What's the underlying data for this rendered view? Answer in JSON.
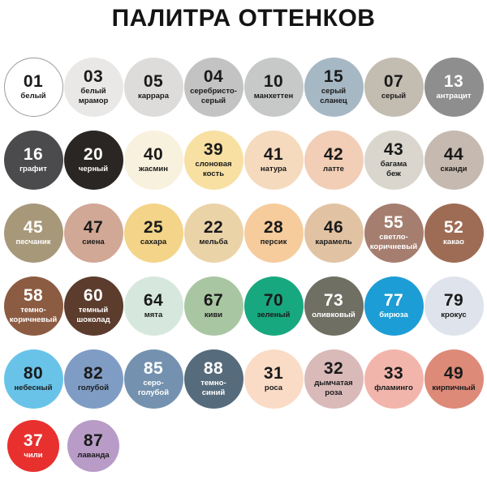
{
  "title": "ПАЛИТРА ОТТЕНКОВ",
  "palette": {
    "rows": [
      [
        {
          "number": "01",
          "name": "белый",
          "color": "#ffffff",
          "text_color": "#1a1a1a",
          "border": "#9a9a9a"
        },
        {
          "number": "03",
          "name": "белый\nмрамор",
          "color": "#e9e8e6",
          "text_color": "#1a1a1a"
        },
        {
          "number": "05",
          "name": "каррара",
          "color": "#dddcda",
          "text_color": "#1a1a1a"
        },
        {
          "number": "04",
          "name": "серебристо-\nсерый",
          "color": "#c3c3c3",
          "text_color": "#1a1a1a"
        },
        {
          "number": "10",
          "name": "манхеттен",
          "color": "#c6c9c8",
          "text_color": "#1a1a1a"
        },
        {
          "number": "15",
          "name": "серый\nсланец",
          "color": "#a7b8c5",
          "text_color": "#1a1a1a"
        },
        {
          "number": "07",
          "name": "серый",
          "color": "#c3bcb0",
          "text_color": "#1a1a1a"
        },
        {
          "number": "13",
          "name": "антрацит",
          "color": "#8e8e8e",
          "text_color": "#ffffff"
        }
      ],
      [
        {
          "number": "16",
          "name": "графит",
          "color": "#4b4b4d",
          "text_color": "#ffffff"
        },
        {
          "number": "20",
          "name": "черный",
          "color": "#292623",
          "text_color": "#ffffff"
        },
        {
          "number": "40",
          "name": "жасмин",
          "color": "#f8f1dd",
          "text_color": "#1a1a1a"
        },
        {
          "number": "39",
          "name": "слоновая\nкость",
          "color": "#f8e0a2",
          "text_color": "#1a1a1a"
        },
        {
          "number": "41",
          "name": "натура",
          "color": "#f6dabd",
          "text_color": "#1a1a1a"
        },
        {
          "number": "42",
          "name": "латте",
          "color": "#f1ceb5",
          "text_color": "#1a1a1a"
        },
        {
          "number": "43",
          "name": "багама\nбеж",
          "color": "#dad6cd",
          "text_color": "#1a1a1a"
        },
        {
          "number": "44",
          "name": "сканди",
          "color": "#c6b9af",
          "text_color": "#1a1a1a"
        }
      ],
      [
        {
          "number": "45",
          "name": "песчаник",
          "color": "#a8987a",
          "text_color": "#ffffff"
        },
        {
          "number": "47",
          "name": "сиена",
          "color": "#d1a795",
          "text_color": "#1a1a1a"
        },
        {
          "number": "25",
          "name": "сахара",
          "color": "#f3d489",
          "text_color": "#1a1a1a"
        },
        {
          "number": "22",
          "name": "мельба",
          "color": "#ebd3a8",
          "text_color": "#1a1a1a"
        },
        {
          "number": "28",
          "name": "персик",
          "color": "#f6cc9d",
          "text_color": "#1a1a1a"
        },
        {
          "number": "46",
          "name": "карамель",
          "color": "#e1c3a3",
          "text_color": "#1a1a1a"
        },
        {
          "number": "55",
          "name": "светло-\nкоричневый",
          "color": "#a57e6f",
          "text_color": "#ffffff"
        },
        {
          "number": "52",
          "name": "какао",
          "color": "#9e6c54",
          "text_color": "#ffffff"
        }
      ],
      [
        {
          "number": "58",
          "name": "темно-\nкоричневый",
          "color": "#8c5c42",
          "text_color": "#ffffff"
        },
        {
          "number": "60",
          "name": "темный\nшоколад",
          "color": "#5c3c2c",
          "text_color": "#ffffff"
        },
        {
          "number": "64",
          "name": "мята",
          "color": "#d6e8de",
          "text_color": "#1a1a1a"
        },
        {
          "number": "67",
          "name": "киви",
          "color": "#a9c6a2",
          "text_color": "#1a1a1a"
        },
        {
          "number": "70",
          "name": "зеленый",
          "color": "#18a87f",
          "text_color": "#1a1a1a"
        },
        {
          "number": "73",
          "name": "оливковый",
          "color": "#6f6f63",
          "text_color": "#ffffff"
        },
        {
          "number": "77",
          "name": "бирюза",
          "color": "#1d9dd5",
          "text_color": "#ffffff"
        },
        {
          "number": "79",
          "name": "крокус",
          "color": "#dfe3ec",
          "text_color": "#1a1a1a"
        }
      ],
      [
        {
          "number": "80",
          "name": "небесный",
          "color": "#69c3e9",
          "text_color": "#1a1a1a"
        },
        {
          "number": "82",
          "name": "голубой",
          "color": "#7f9dc4",
          "text_color": "#1a1a1a"
        },
        {
          "number": "85",
          "name": "серо-\nголубой",
          "color": "#7492af",
          "text_color": "#ffffff"
        },
        {
          "number": "88",
          "name": "темно-\nсиний",
          "color": "#566b7b",
          "text_color": "#ffffff"
        },
        {
          "number": "31",
          "name": "роса",
          "color": "#fadcc6",
          "text_color": "#1a1a1a"
        },
        {
          "number": "32",
          "name": "дымчатая\nроза",
          "color": "#d9bab9",
          "text_color": "#1a1a1a"
        },
        {
          "number": "33",
          "name": "фламинго",
          "color": "#f2b5ac",
          "text_color": "#1a1a1a"
        },
        {
          "number": "49",
          "name": "кирпичный",
          "color": "#dd8a79",
          "text_color": "#1a1a1a"
        }
      ],
      [
        {
          "number": "37",
          "name": "чили",
          "color": "#e8302e",
          "text_color": "#ffffff"
        },
        {
          "number": "87",
          "name": "лаванда",
          "color": "#b89cc7",
          "text_color": "#1a1a1a"
        }
      ]
    ]
  }
}
